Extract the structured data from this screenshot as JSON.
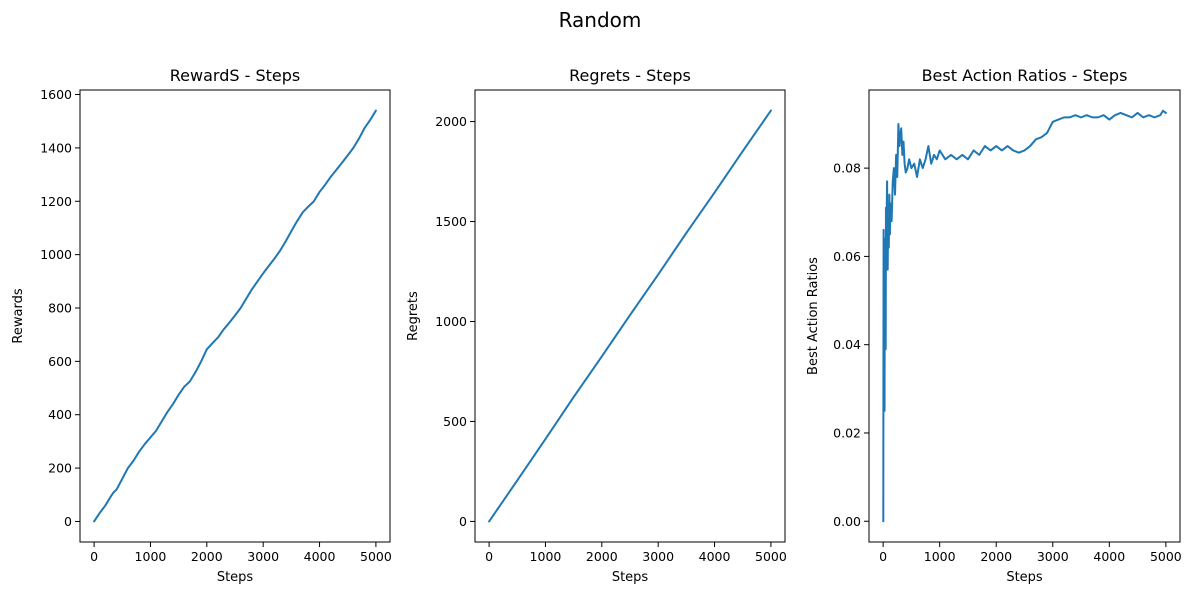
{
  "suptitle": "Random",
  "colors": {
    "series": "#1f77b4"
  },
  "chart_data": [
    {
      "type": "line",
      "title": "RewardS - Steps",
      "xlabel": "Steps",
      "ylabel": "Rewards",
      "xlim": [
        -250,
        5250
      ],
      "ylim": [
        -77,
        1617
      ],
      "xticks": [
        0,
        1000,
        2000,
        3000,
        4000,
        5000
      ],
      "xtick_labels": [
        "0",
        "1000",
        "2000",
        "3000",
        "4000",
        "5000"
      ],
      "yticks": [
        0,
        200,
        400,
        600,
        800,
        1000,
        1200,
        1400,
        1600
      ],
      "ytick_labels": [
        "0",
        "200",
        "400",
        "600",
        "800",
        "1000",
        "1200",
        "1400",
        "1600"
      ],
      "grid": false,
      "series": [
        {
          "x": [
            0,
            100,
            200,
            300,
            350,
            400,
            500,
            600,
            700,
            800,
            900,
            1000,
            1100,
            1200,
            1300,
            1400,
            1500,
            1600,
            1700,
            1800,
            1900,
            2000,
            2100,
            2200,
            2300,
            2400,
            2500,
            2600,
            2700,
            2800,
            2900,
            3000,
            3100,
            3200,
            3300,
            3400,
            3500,
            3600,
            3700,
            3800,
            3900,
            4000,
            4100,
            4200,
            4300,
            4400,
            4500,
            4600,
            4700,
            4800,
            4900,
            5000
          ],
          "y": [
            0,
            32,
            60,
            95,
            110,
            120,
            160,
            200,
            228,
            262,
            290,
            315,
            340,
            375,
            410,
            440,
            475,
            505,
            525,
            560,
            600,
            645,
            668,
            690,
            720,
            745,
            772,
            800,
            835,
            870,
            900,
            930,
            958,
            985,
            1015,
            1050,
            1088,
            1125,
            1158,
            1180,
            1200,
            1235,
            1262,
            1292,
            1318,
            1345,
            1372,
            1400,
            1435,
            1475,
            1505,
            1540
          ]
        }
      ]
    },
    {
      "type": "line",
      "title": "Regrets - Steps",
      "xlabel": "Steps",
      "ylabel": "Regrets",
      "xlim": [
        -250,
        5250
      ],
      "ylim": [
        -103,
        2158
      ],
      "xticks": [
        0,
        1000,
        2000,
        3000,
        4000,
        5000
      ],
      "xtick_labels": [
        "0",
        "1000",
        "2000",
        "3000",
        "4000",
        "5000"
      ],
      "yticks": [
        0,
        500,
        1000,
        1500,
        2000
      ],
      "ytick_labels": [
        "0",
        "500",
        "1000",
        "1500",
        "2000"
      ],
      "grid": false,
      "series": [
        {
          "x": [
            0,
            500,
            1000,
            1500,
            2000,
            2500,
            3000,
            3500,
            4000,
            4500,
            5000
          ],
          "y": [
            0,
            205,
            412,
            622,
            825,
            1032,
            1235,
            1443,
            1645,
            1852,
            2055
          ]
        }
      ]
    },
    {
      "type": "line",
      "title": "Best Action Ratios - Steps",
      "xlabel": "Steps",
      "ylabel": "Best Action Ratios",
      "xlim": [
        -250,
        5250
      ],
      "ylim": [
        -0.0047,
        0.0977
      ],
      "xticks": [
        0,
        1000,
        2000,
        3000,
        4000,
        5000
      ],
      "xtick_labels": [
        "0",
        "1000",
        "2000",
        "3000",
        "4000",
        "5000"
      ],
      "yticks": [
        0.0,
        0.02,
        0.04,
        0.06,
        0.08
      ],
      "ytick_labels": [
        "0.00",
        "0.02",
        "0.04",
        "0.06",
        "0.08"
      ],
      "grid": false,
      "series": [
        {
          "x": [
            0,
            3,
            5,
            8,
            12,
            18,
            25,
            30,
            35,
            40,
            45,
            50,
            55,
            60,
            65,
            70,
            80,
            90,
            100,
            110,
            120,
            130,
            150,
            170,
            190,
            210,
            230,
            250,
            270,
            290,
            300,
            320,
            340,
            360,
            380,
            400,
            430,
            460,
            500,
            550,
            600,
            650,
            700,
            750,
            800,
            850,
            900,
            950,
            1000,
            1100,
            1200,
            1300,
            1400,
            1500,
            1600,
            1700,
            1800,
            1900,
            2000,
            2100,
            2200,
            2300,
            2400,
            2500,
            2600,
            2700,
            2800,
            2900,
            3000,
            3100,
            3200,
            3300,
            3400,
            3500,
            3600,
            3700,
            3800,
            3900,
            4000,
            4100,
            4200,
            4300,
            4400,
            4500,
            4600,
            4700,
            4800,
            4900,
            4950,
            5000
          ],
          "y": [
            0.0,
            0.0,
            0.033,
            0.066,
            0.025,
            0.062,
            0.025,
            0.064,
            0.047,
            0.06,
            0.039,
            0.071,
            0.058,
            0.066,
            0.072,
            0.077,
            0.057,
            0.07,
            0.062,
            0.074,
            0.065,
            0.072,
            0.068,
            0.077,
            0.08,
            0.074,
            0.083,
            0.078,
            0.09,
            0.085,
            0.087,
            0.089,
            0.083,
            0.086,
            0.081,
            0.079,
            0.08,
            0.082,
            0.08,
            0.081,
            0.078,
            0.082,
            0.08,
            0.082,
            0.085,
            0.081,
            0.083,
            0.082,
            0.084,
            0.082,
            0.083,
            0.082,
            0.083,
            0.082,
            0.084,
            0.083,
            0.085,
            0.084,
            0.085,
            0.084,
            0.085,
            0.084,
            0.0835,
            0.084,
            0.085,
            0.0865,
            0.087,
            0.088,
            0.0905,
            0.091,
            0.0915,
            0.0915,
            0.092,
            0.0915,
            0.092,
            0.0915,
            0.0915,
            0.092,
            0.091,
            0.092,
            0.0925,
            0.092,
            0.0915,
            0.0925,
            0.0915,
            0.092,
            0.0915,
            0.092,
            0.093,
            0.0925
          ]
        }
      ]
    }
  ]
}
